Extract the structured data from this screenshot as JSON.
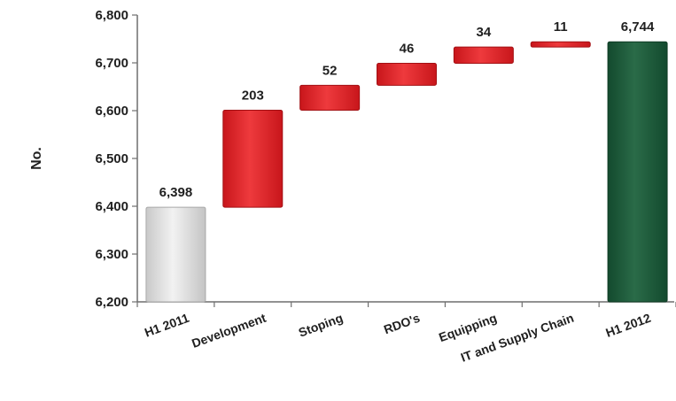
{
  "chart_data": {
    "type": "bar",
    "subtype": "waterfall",
    "ylabel": "No.",
    "ylim": [
      6200,
      6800
    ],
    "yticks": [
      6200,
      6300,
      6400,
      6500,
      6600,
      6700,
      6800
    ],
    "ytick_labels": [
      "6,200",
      "6,300",
      "6,400",
      "6,500",
      "6,600",
      "6,700",
      "6,800"
    ],
    "categories": [
      "H1 2011",
      "Development",
      "Stoping",
      "RDO's",
      "Equipping",
      "IT and Supply Chain",
      "H1 2012"
    ],
    "bars": [
      {
        "category": "H1 2011",
        "kind": "total",
        "start": 6200,
        "end": 6398,
        "label": "6,398",
        "color": "#dcdcdc"
      },
      {
        "category": "Development",
        "kind": "increase",
        "start": 6398,
        "end": 6601,
        "label": "203",
        "color": "#e3262a"
      },
      {
        "category": "Stoping",
        "kind": "increase",
        "start": 6601,
        "end": 6653,
        "label": "52",
        "color": "#e3262a"
      },
      {
        "category": "RDO's",
        "kind": "increase",
        "start": 6653,
        "end": 6699,
        "label": "46",
        "color": "#e3262a"
      },
      {
        "category": "Equipping",
        "kind": "increase",
        "start": 6699,
        "end": 6733,
        "label": "34",
        "color": "#e3262a"
      },
      {
        "category": "IT and Supply Chain",
        "kind": "increase",
        "start": 6733,
        "end": 6744,
        "label": "11",
        "color": "#e3262a"
      },
      {
        "category": "H1 2012",
        "kind": "total",
        "start": 6200,
        "end": 6744,
        "label": "6,744",
        "color": "#1f5a3c"
      }
    ],
    "grid": false,
    "legend": "none"
  }
}
